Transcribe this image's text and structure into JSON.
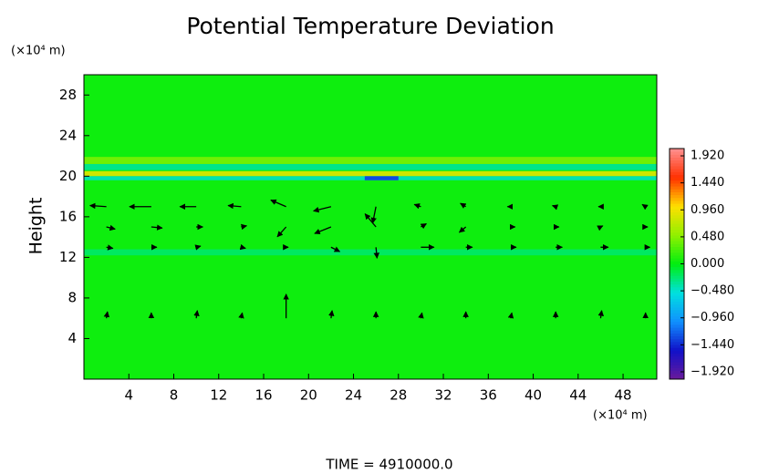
{
  "chart_data": {
    "type": "heatmap",
    "title": "Potential Temperature Deviation",
    "y_label": "Height",
    "x_unit": "(×10⁴ m)",
    "y_unit": "(×10⁴ m)",
    "footer": "TIME = 4910000.0",
    "xlim": [
      0,
      51
    ],
    "ylim": [
      0,
      30
    ],
    "xticks": [
      4,
      8,
      12,
      16,
      20,
      24,
      28,
      32,
      36,
      40,
      44,
      48
    ],
    "yticks": [
      4,
      8,
      12,
      16,
      20,
      24,
      28
    ],
    "clim": [
      -2.05,
      2.05
    ],
    "colorbar_ticks": [
      {
        "value": 1.92,
        "label": "1.920"
      },
      {
        "value": 1.44,
        "label": "1.440"
      },
      {
        "value": 0.96,
        "label": "0.960"
      },
      {
        "value": 0.48,
        "label": "0.480"
      },
      {
        "value": 0,
        "label": "0.000"
      },
      {
        "value": -0.48,
        "label": "−0.480"
      },
      {
        "value": -0.96,
        "label": "−0.960"
      },
      {
        "value": -1.44,
        "label": "−1.440"
      },
      {
        "value": -1.92,
        "label": "−1.920"
      }
    ],
    "colormap": [
      "#6a1b9a",
      "#1010c8",
      "#1090ff",
      "#00e0e0",
      "#00ee10",
      "#90f000",
      "#ffe000",
      "#ff3000",
      "#ff9090"
    ],
    "regions": [
      {
        "x": [
          0,
          51
        ],
        "y": [
          0,
          30
        ],
        "value": 0.05
      },
      {
        "x": [
          0,
          51
        ],
        "y": [
          21.2,
          21.9
        ],
        "value": 0.4
      },
      {
        "x": [
          0,
          51
        ],
        "y": [
          20.6,
          21.2
        ],
        "value": -0.3
      },
      {
        "x": [
          0,
          51
        ],
        "y": [
          20.0,
          20.5
        ],
        "value": 0.8
      },
      {
        "x": [
          0,
          51
        ],
        "y": [
          19.6,
          20.0
        ],
        "value": -0.4
      },
      {
        "x": [
          25,
          28
        ],
        "y": [
          19.6,
          20.0
        ],
        "value": -1.3
      },
      {
        "x": [
          0,
          51
        ],
        "y": [
          12.2,
          12.8
        ],
        "value": -0.2
      }
    ],
    "vectors": {
      "x": [
        2,
        6,
        10,
        14,
        18,
        22,
        26,
        30,
        34,
        38,
        42,
        46,
        50,
        2,
        6,
        10,
        14,
        18,
        22,
        26,
        30,
        34,
        38,
        42,
        46,
        50,
        2,
        6,
        10,
        14,
        18,
        22,
        26,
        30,
        34,
        38,
        42,
        46,
        50,
        2,
        6,
        10,
        14,
        18,
        22,
        26,
        30,
        34,
        38,
        42,
        46,
        50
      ],
      "y": [
        17,
        17,
        17,
        17,
        17,
        17,
        17,
        17,
        17,
        17,
        17,
        17,
        17,
        15,
        15,
        15,
        15,
        15,
        15,
        15,
        15,
        15,
        15,
        15,
        15,
        15,
        13,
        13,
        13,
        13,
        13,
        13,
        13,
        13,
        13,
        13,
        13,
        13,
        13,
        6,
        6,
        6,
        6,
        6,
        6,
        6,
        6,
        6,
        6,
        6,
        6,
        6
      ],
      "u": [
        -1.5,
        -2,
        -1.5,
        -1.2,
        -1.4,
        -1.6,
        -0.3,
        -0.6,
        -0.5,
        -0.3,
        -0.3,
        -0.2,
        -0.3,
        0.8,
        1,
        0.6,
        0.5,
        -0.8,
        -1.5,
        -1,
        0.5,
        -0.6,
        0.4,
        0.3,
        0.2,
        0.2,
        0.6,
        0.5,
        0.4,
        0.4,
        0.2,
        0.8,
        0.1,
        1.2,
        0.6,
        0.5,
        0.6,
        0.7,
        0.4,
        0.1,
        0,
        0.1,
        0.1,
        0,
        0.1,
        0,
        0.1,
        0,
        0.1,
        0,
        0.1,
        0
      ],
      "v": [
        0.1,
        0,
        0,
        0.1,
        0.6,
        -0.4,
        -1.5,
        0.2,
        0.3,
        0,
        0.1,
        0,
        0.2,
        -0.2,
        -0.1,
        0,
        0.1,
        -0.9,
        -0.6,
        1.2,
        0.3,
        -0.5,
        0,
        0,
        0.1,
        0,
        -0.1,
        0,
        0.1,
        -0.1,
        0,
        -0.4,
        -1,
        0,
        0,
        0,
        0,
        0,
        0,
        0.6,
        0.5,
        0.7,
        0.5,
        2.2,
        0.7,
        0.6,
        0.5,
        0.6,
        0.5,
        0.6,
        0.7,
        0.5
      ]
    }
  }
}
